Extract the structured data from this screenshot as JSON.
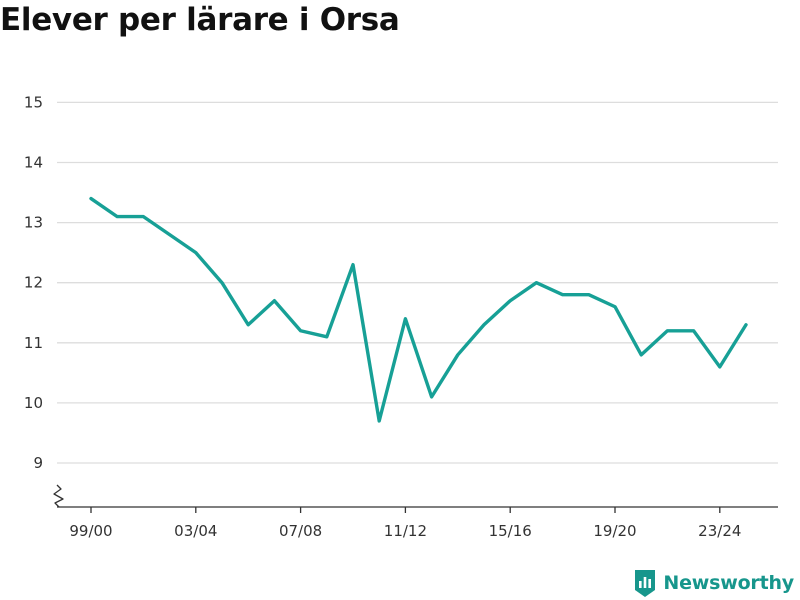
{
  "title": "Elever per lärare i Orsa",
  "brand": {
    "name": "Newsworthy",
    "icon": "newsworthy-logo-icon",
    "color": "#17968c"
  },
  "chart_data": {
    "type": "line",
    "title": "Elever per lärare i Orsa",
    "xlabel": "",
    "ylabel": "",
    "x": [
      "99/00",
      "00/01",
      "01/02",
      "02/03",
      "03/04",
      "04/05",
      "05/06",
      "06/07",
      "07/08",
      "08/09",
      "09/10",
      "10/11",
      "11/12",
      "12/13",
      "13/14",
      "14/15",
      "15/16",
      "16/17",
      "17/18",
      "18/19",
      "19/20",
      "20/21",
      "21/22",
      "22/23",
      "23/24",
      "24/25"
    ],
    "x_tick_labels": [
      "99/00",
      "03/04",
      "07/08",
      "11/12",
      "15/16",
      "19/20",
      "23/24"
    ],
    "series": [
      {
        "color": "#17a096",
        "values": [
          13.4,
          13.1,
          13.1,
          12.8,
          12.5,
          12.0,
          11.3,
          11.7,
          11.2,
          11.1,
          12.3,
          9.7,
          11.4,
          10.1,
          10.8,
          11.3,
          11.7,
          12.0,
          11.8,
          11.8,
          11.6,
          10.8,
          11.2,
          11.2,
          10.6,
          11.3
        ]
      }
    ],
    "y_ticks": [
      9,
      10,
      11,
      12,
      13,
      14,
      15
    ],
    "ylim": [
      8.35,
      15.15
    ],
    "y_axis_break": true,
    "grid": true,
    "legend": "none"
  }
}
